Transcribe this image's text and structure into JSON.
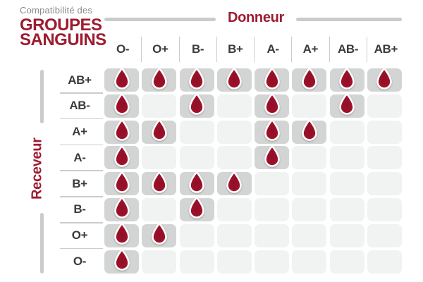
{
  "title": {
    "subtitle": "Compatibilité des",
    "line1": "GROUPES",
    "line2": "SANGUINS"
  },
  "axes": {
    "donor": "Donneur",
    "receiver": "Receveur"
  },
  "chart_data": {
    "type": "heatmap",
    "title": "Compatibilité des GROUPES SANGUINS",
    "x_axis_label": "Donneur",
    "y_axis_label": "Receveur",
    "columns": [
      "O-",
      "O+",
      "B-",
      "B+",
      "A-",
      "A+",
      "AB-",
      "AB+"
    ],
    "rows": [
      "AB+",
      "AB-",
      "A+",
      "A-",
      "B+",
      "B-",
      "O+",
      "O-"
    ],
    "matrix": [
      [
        1,
        1,
        1,
        1,
        1,
        1,
        1,
        1
      ],
      [
        1,
        0,
        1,
        0,
        1,
        0,
        1,
        0
      ],
      [
        1,
        1,
        0,
        0,
        1,
        1,
        0,
        0
      ],
      [
        1,
        0,
        0,
        0,
        1,
        0,
        0,
        0
      ],
      [
        1,
        1,
        1,
        1,
        0,
        0,
        0,
        0
      ],
      [
        1,
        0,
        1,
        0,
        0,
        0,
        0,
        0
      ],
      [
        1,
        1,
        0,
        0,
        0,
        0,
        0,
        0
      ],
      [
        1,
        0,
        0,
        0,
        0,
        0,
        0,
        0
      ]
    ],
    "marker": "blood-drop-icon = compatible",
    "legend_position": "none",
    "grid": false
  },
  "colors": {
    "accent_red": "#9e1b30",
    "drop_red_center": "#8e0f27",
    "drop_red_edge": "#b2143a",
    "filled_cell": "#d3d5d5",
    "empty_cell": "#f1f2f2",
    "bar_gray": "#c9cbcc",
    "divider_gray": "#cccccc",
    "label_dark": "#3b3b3b",
    "subtitle_gray": "#8a8a8a"
  }
}
